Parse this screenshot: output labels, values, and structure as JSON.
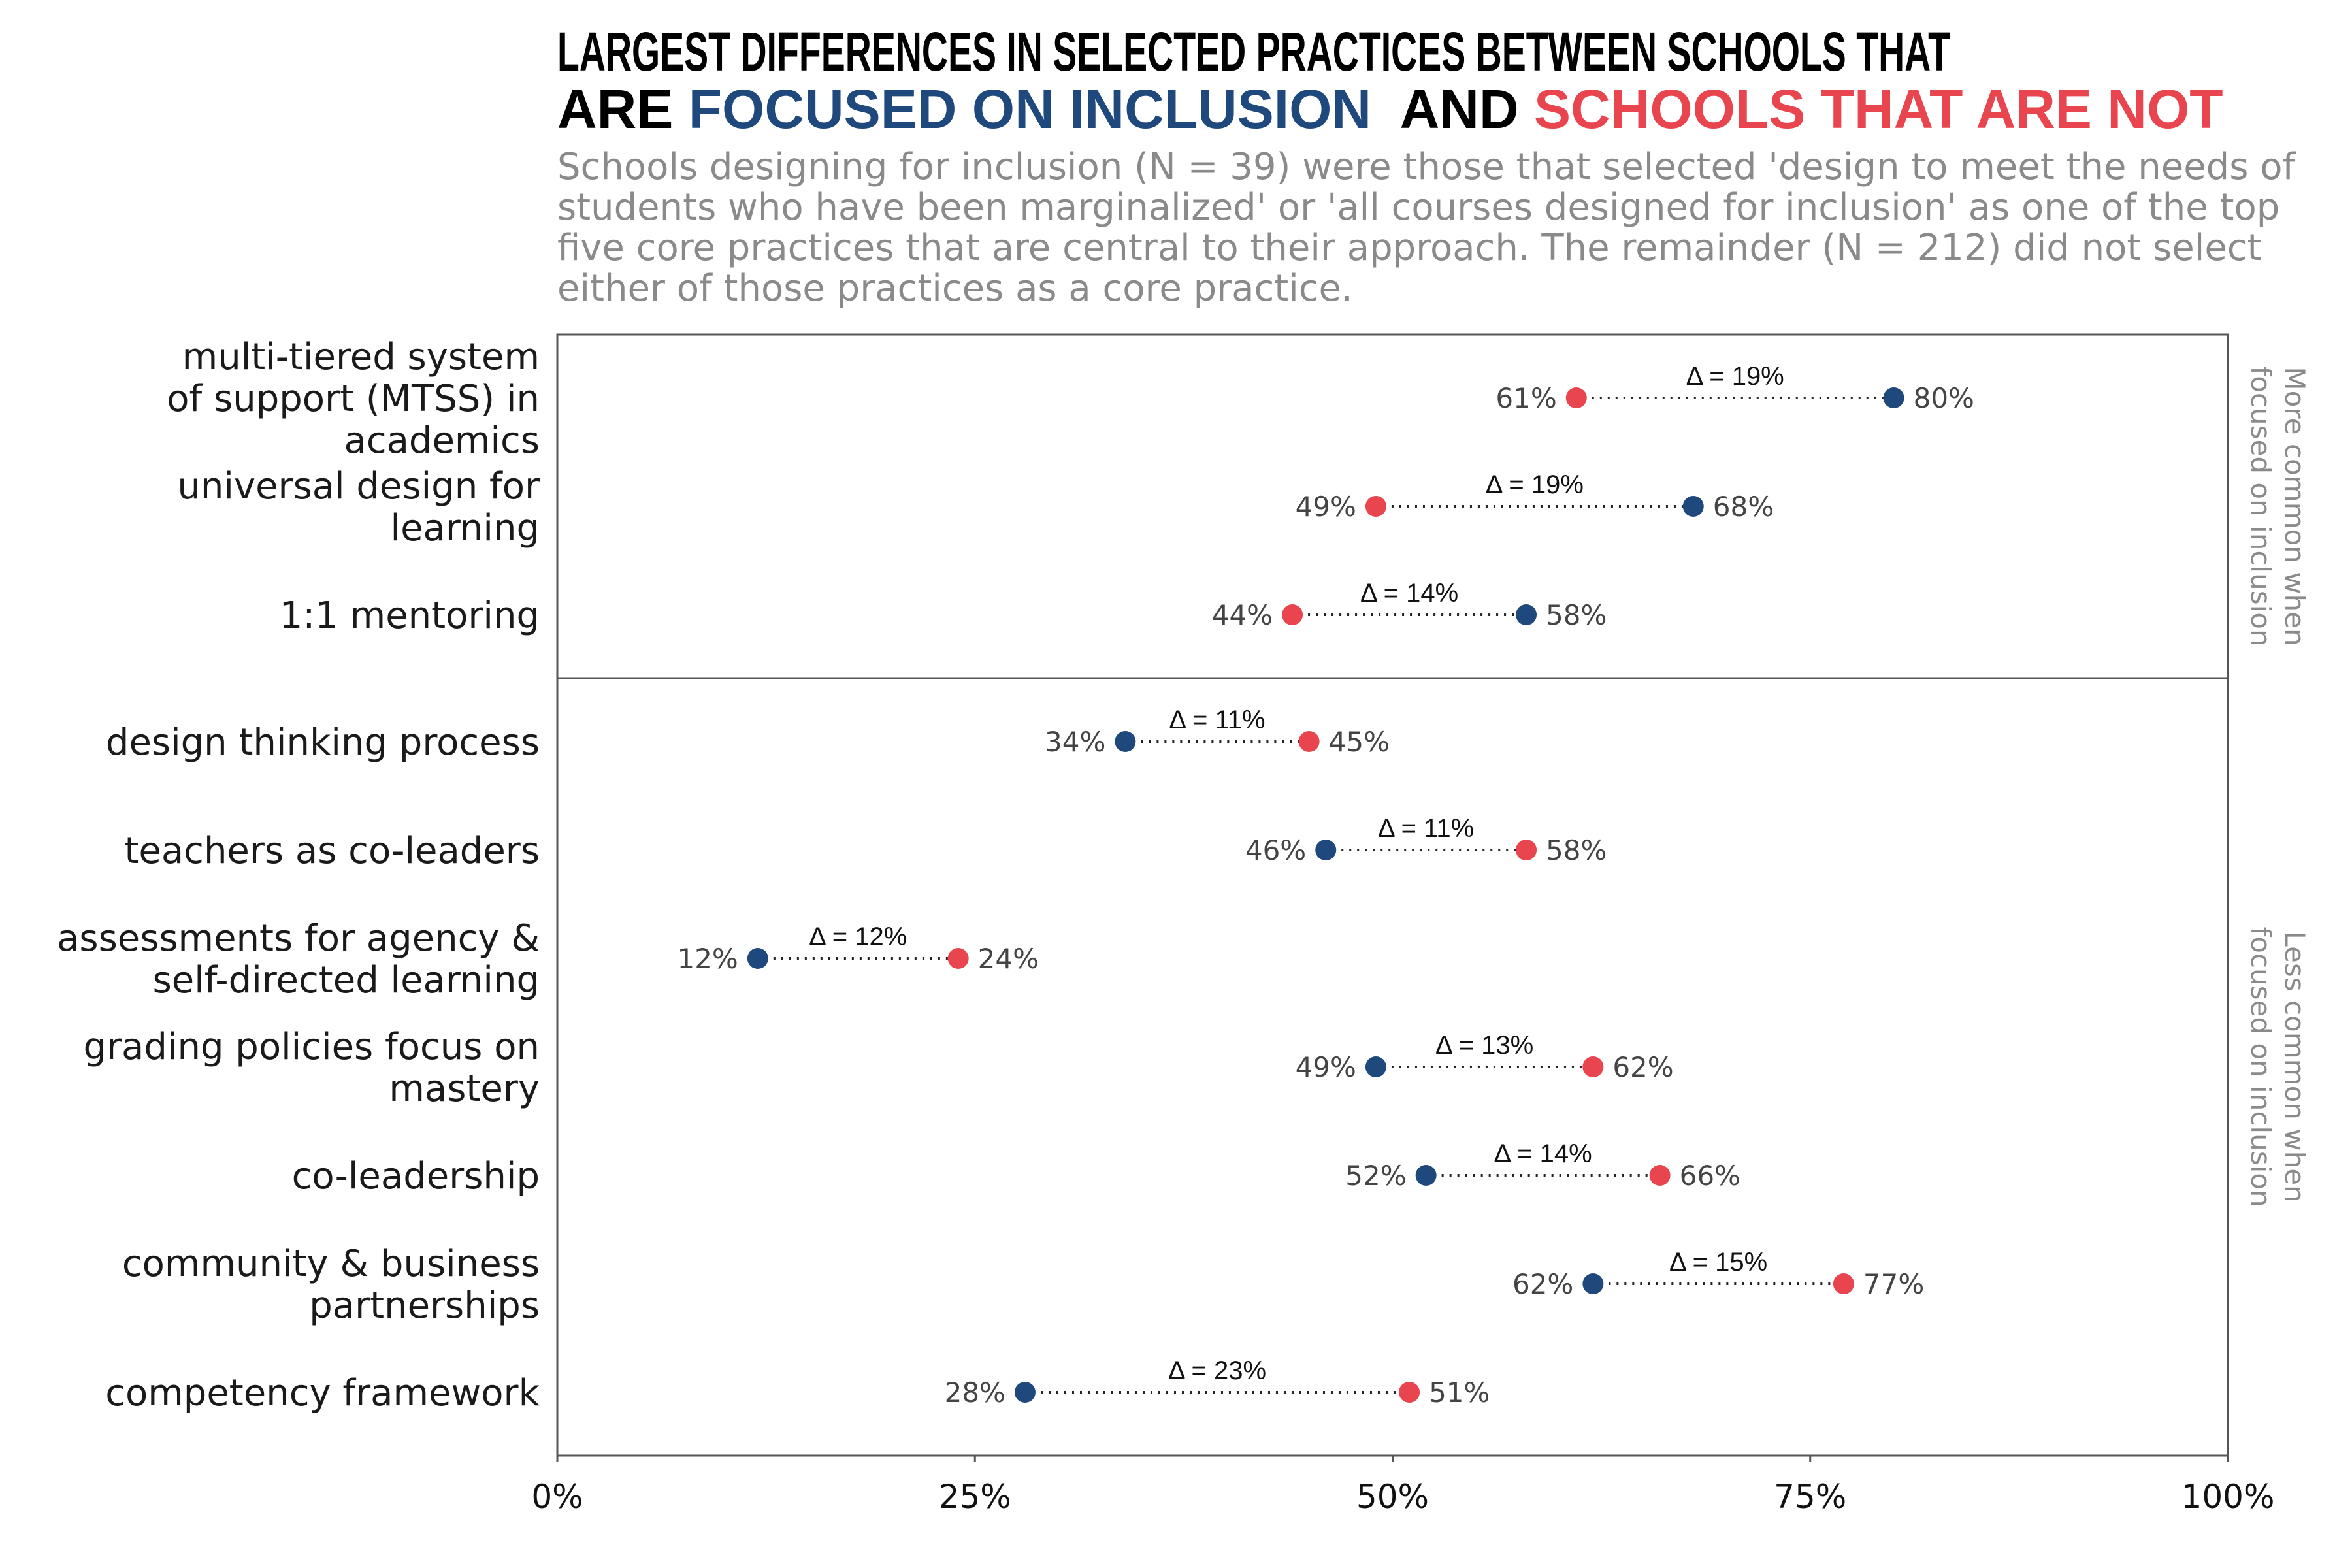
{
  "title": {
    "line1": "LARGEST DIFFERENCES IN SELECTED PRACTICES BETWEEN SCHOOLS THAT",
    "line2_prefix": "ARE ",
    "line2_blue": "FOCUSED ON INCLUSION",
    "line2_mid": "  AND ",
    "line2_red": "SCHOOLS THAT ARE NOT"
  },
  "subtitle_lines": [
    "Schools designing for inclusion (N = 39) were those that selected 'design to meet the needs of",
    "students who have been marginalized' or 'all courses designed for inclusion' as one of the top",
    "five core practices that are central to their approach. The remainder (N = 212) did not select",
    "either of those practices as a core practice."
  ],
  "colors": {
    "inclusion": "#1f497d",
    "not_inclusion": "#e8454f",
    "title_text": "#000000",
    "panel_border": "#555555"
  },
  "chart_data": {
    "type": "dumbbell",
    "xlim": [
      0,
      100
    ],
    "x_ticks": [
      0,
      25,
      50,
      75,
      100
    ],
    "x_tick_labels": [
      "0%",
      "25%",
      "50%",
      "75%",
      "100%"
    ],
    "grid": false,
    "series": [
      {
        "name": "focused on inclusion",
        "color": "#1f497d"
      },
      {
        "name": "schools that are not",
        "color": "#e8454f"
      }
    ],
    "panels": [
      {
        "label_lines": [
          "More common when",
          "focused on inclusion"
        ],
        "rows": [
          {
            "category_lines": [
              "multi-tiered system",
              "of support (MTSS) in",
              "academics"
            ],
            "inclusion": 80,
            "not_inclusion": 61,
            "delta_label": "Δ = 19%"
          },
          {
            "category_lines": [
              "universal design for",
              "learning"
            ],
            "inclusion": 68,
            "not_inclusion": 49,
            "delta_label": "Δ = 19%"
          },
          {
            "category_lines": [
              "1:1 mentoring"
            ],
            "inclusion": 58,
            "not_inclusion": 44,
            "delta_label": "Δ = 14%"
          }
        ]
      },
      {
        "label_lines": [
          "Less common when",
          "focused on inclusion"
        ],
        "rows": [
          {
            "category_lines": [
              "design thinking process"
            ],
            "inclusion": 34,
            "not_inclusion": 45,
            "delta_label": "Δ = 11%"
          },
          {
            "category_lines": [
              "teachers as co-leaders"
            ],
            "inclusion": 46,
            "not_inclusion": 58,
            "delta_label": "Δ = 11%"
          },
          {
            "category_lines": [
              "assessments for agency &",
              "self-directed learning"
            ],
            "inclusion": 12,
            "not_inclusion": 24,
            "delta_label": "Δ = 12%"
          },
          {
            "category_lines": [
              "grading policies focus on",
              "mastery"
            ],
            "inclusion": 49,
            "not_inclusion": 62,
            "delta_label": "Δ = 13%"
          },
          {
            "category_lines": [
              "co-leadership"
            ],
            "inclusion": 52,
            "not_inclusion": 66,
            "delta_label": "Δ = 14%"
          },
          {
            "category_lines": [
              "community & business",
              "partnerships"
            ],
            "inclusion": 62,
            "not_inclusion": 77,
            "delta_label": "Δ = 15%"
          },
          {
            "category_lines": [
              "competency framework"
            ],
            "inclusion": 28,
            "not_inclusion": 51,
            "delta_label": "Δ = 23%"
          }
        ]
      }
    ]
  }
}
